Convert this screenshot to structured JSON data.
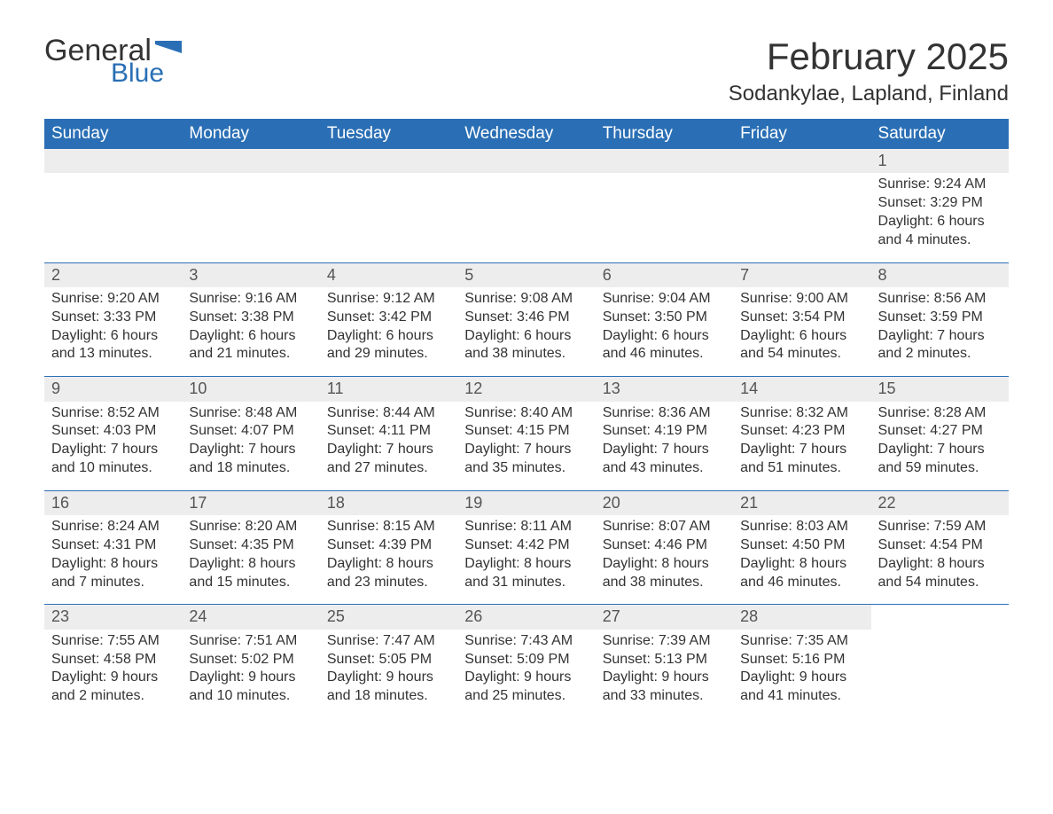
{
  "brand": {
    "word1": "General",
    "word2": "Blue",
    "word1_color": "#333333",
    "word2_color": "#2a6fb5",
    "flag_color": "#2a6fb5"
  },
  "title": "February 2025",
  "subtitle": "Sodankylae, Lapland, Finland",
  "colors": {
    "header_bg": "#2a6fb5",
    "header_text": "#ffffff",
    "daynum_bg": "#ededed",
    "week_border": "#2a6fb5",
    "body_text": "#333333",
    "background": "#ffffff"
  },
  "fontsize": {
    "title": 42,
    "subtitle": 24,
    "dow": 19,
    "daynum": 18,
    "body": 16
  },
  "days_of_week": [
    "Sunday",
    "Monday",
    "Tuesday",
    "Wednesday",
    "Thursday",
    "Friday",
    "Saturday"
  ],
  "labels": {
    "sunrise_prefix": "Sunrise: ",
    "sunset_prefix": "Sunset: ",
    "daylight_prefix": "Daylight: "
  },
  "weeks": [
    [
      {
        "empty": true
      },
      {
        "empty": true
      },
      {
        "empty": true
      },
      {
        "empty": true
      },
      {
        "empty": true
      },
      {
        "empty": true
      },
      {
        "day": "1",
        "sunrise": "9:24 AM",
        "sunset": "3:29 PM",
        "daylight_l1": "6 hours",
        "daylight_l2": "and 4 minutes."
      }
    ],
    [
      {
        "day": "2",
        "sunrise": "9:20 AM",
        "sunset": "3:33 PM",
        "daylight_l1": "6 hours",
        "daylight_l2": "and 13 minutes."
      },
      {
        "day": "3",
        "sunrise": "9:16 AM",
        "sunset": "3:38 PM",
        "daylight_l1": "6 hours",
        "daylight_l2": "and 21 minutes."
      },
      {
        "day": "4",
        "sunrise": "9:12 AM",
        "sunset": "3:42 PM",
        "daylight_l1": "6 hours",
        "daylight_l2": "and 29 minutes."
      },
      {
        "day": "5",
        "sunrise": "9:08 AM",
        "sunset": "3:46 PM",
        "daylight_l1": "6 hours",
        "daylight_l2": "and 38 minutes."
      },
      {
        "day": "6",
        "sunrise": "9:04 AM",
        "sunset": "3:50 PM",
        "daylight_l1": "6 hours",
        "daylight_l2": "and 46 minutes."
      },
      {
        "day": "7",
        "sunrise": "9:00 AM",
        "sunset": "3:54 PM",
        "daylight_l1": "6 hours",
        "daylight_l2": "and 54 minutes."
      },
      {
        "day": "8",
        "sunrise": "8:56 AM",
        "sunset": "3:59 PM",
        "daylight_l1": "7 hours",
        "daylight_l2": "and 2 minutes."
      }
    ],
    [
      {
        "day": "9",
        "sunrise": "8:52 AM",
        "sunset": "4:03 PM",
        "daylight_l1": "7 hours",
        "daylight_l2": "and 10 minutes."
      },
      {
        "day": "10",
        "sunrise": "8:48 AM",
        "sunset": "4:07 PM",
        "daylight_l1": "7 hours",
        "daylight_l2": "and 18 minutes."
      },
      {
        "day": "11",
        "sunrise": "8:44 AM",
        "sunset": "4:11 PM",
        "daylight_l1": "7 hours",
        "daylight_l2": "and 27 minutes."
      },
      {
        "day": "12",
        "sunrise": "8:40 AM",
        "sunset": "4:15 PM",
        "daylight_l1": "7 hours",
        "daylight_l2": "and 35 minutes."
      },
      {
        "day": "13",
        "sunrise": "8:36 AM",
        "sunset": "4:19 PM",
        "daylight_l1": "7 hours",
        "daylight_l2": "and 43 minutes."
      },
      {
        "day": "14",
        "sunrise": "8:32 AM",
        "sunset": "4:23 PM",
        "daylight_l1": "7 hours",
        "daylight_l2": "and 51 minutes."
      },
      {
        "day": "15",
        "sunrise": "8:28 AM",
        "sunset": "4:27 PM",
        "daylight_l1": "7 hours",
        "daylight_l2": "and 59 minutes."
      }
    ],
    [
      {
        "day": "16",
        "sunrise": "8:24 AM",
        "sunset": "4:31 PM",
        "daylight_l1": "8 hours",
        "daylight_l2": "and 7 minutes."
      },
      {
        "day": "17",
        "sunrise": "8:20 AM",
        "sunset": "4:35 PM",
        "daylight_l1": "8 hours",
        "daylight_l2": "and 15 minutes."
      },
      {
        "day": "18",
        "sunrise": "8:15 AM",
        "sunset": "4:39 PM",
        "daylight_l1": "8 hours",
        "daylight_l2": "and 23 minutes."
      },
      {
        "day": "19",
        "sunrise": "8:11 AM",
        "sunset": "4:42 PM",
        "daylight_l1": "8 hours",
        "daylight_l2": "and 31 minutes."
      },
      {
        "day": "20",
        "sunrise": "8:07 AM",
        "sunset": "4:46 PM",
        "daylight_l1": "8 hours",
        "daylight_l2": "and 38 minutes."
      },
      {
        "day": "21",
        "sunrise": "8:03 AM",
        "sunset": "4:50 PM",
        "daylight_l1": "8 hours",
        "daylight_l2": "and 46 minutes."
      },
      {
        "day": "22",
        "sunrise": "7:59 AM",
        "sunset": "4:54 PM",
        "daylight_l1": "8 hours",
        "daylight_l2": "and 54 minutes."
      }
    ],
    [
      {
        "day": "23",
        "sunrise": "7:55 AM",
        "sunset": "4:58 PM",
        "daylight_l1": "9 hours",
        "daylight_l2": "and 2 minutes."
      },
      {
        "day": "24",
        "sunrise": "7:51 AM",
        "sunset": "5:02 PM",
        "daylight_l1": "9 hours",
        "daylight_l2": "and 10 minutes."
      },
      {
        "day": "25",
        "sunrise": "7:47 AM",
        "sunset": "5:05 PM",
        "daylight_l1": "9 hours",
        "daylight_l2": "and 18 minutes."
      },
      {
        "day": "26",
        "sunrise": "7:43 AM",
        "sunset": "5:09 PM",
        "daylight_l1": "9 hours",
        "daylight_l2": "and 25 minutes."
      },
      {
        "day": "27",
        "sunrise": "7:39 AM",
        "sunset": "5:13 PM",
        "daylight_l1": "9 hours",
        "daylight_l2": "and 33 minutes."
      },
      {
        "day": "28",
        "sunrise": "7:35 AM",
        "sunset": "5:16 PM",
        "daylight_l1": "9 hours",
        "daylight_l2": "and 41 minutes."
      },
      {
        "empty": true,
        "no_bg": true
      }
    ]
  ]
}
